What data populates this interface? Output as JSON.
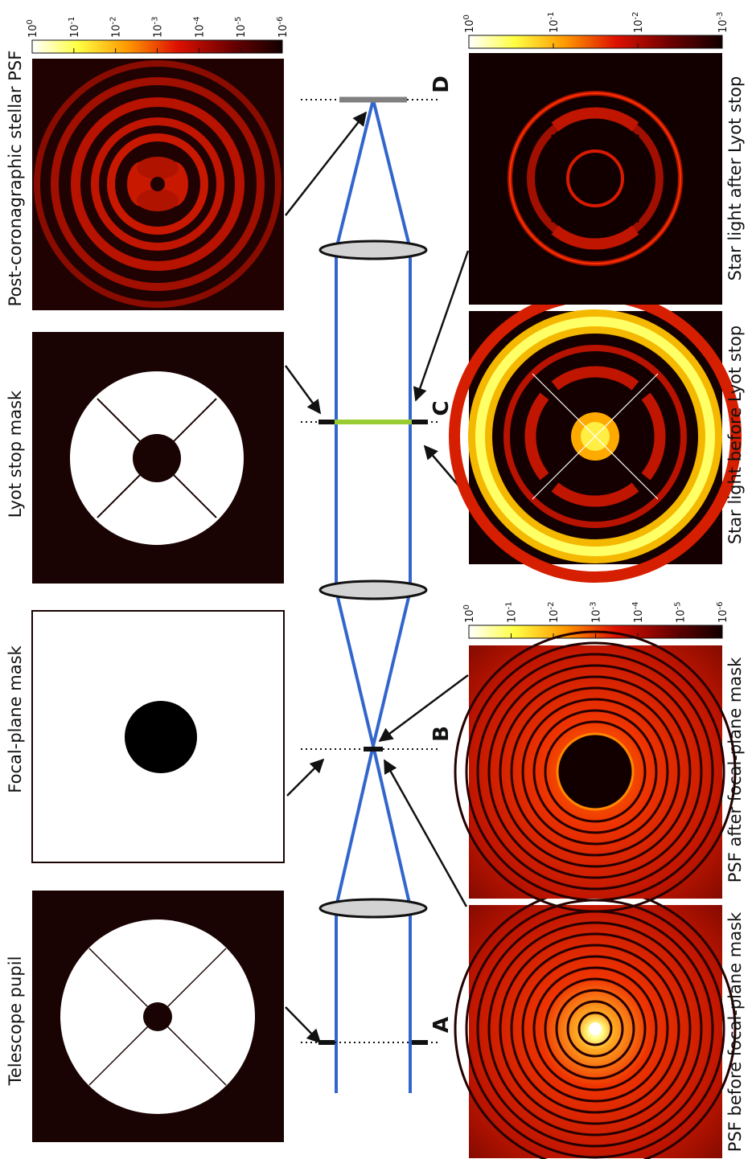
{
  "labels": {
    "telescope_pupil": "Telescope pupil",
    "focal_plane_mask": "Focal-plane mask",
    "lyot_stop_mask": "Lyot stop mask",
    "post_coronagraphic_psf": "Post-coronagraphic stellar PSF",
    "psf_before_fpm": "PSF before focal-plane mask",
    "psf_after_fpm": "PSF after focal-plane mask",
    "star_before_lyot": "Star light before Lyot stop",
    "star_after_lyot": "Star light after Lyot stop"
  },
  "planes": {
    "a": "A",
    "b": "B",
    "c": "C",
    "d": "D"
  },
  "colorbars": {
    "top": [
      "10^0",
      "10^-1",
      "10^-2",
      "10^-3",
      "10^-4",
      "10^-5",
      "10^-6"
    ],
    "bottom_left": [
      "10^0",
      "10^-1",
      "10^-2",
      "10^-3",
      "10^-4",
      "10^-5",
      "10^-6"
    ],
    "bottom_right": [
      "10^0",
      "10^-1",
      "10^-2",
      "10^-3"
    ]
  },
  "colors": {
    "beam": "#3366cc",
    "lyot_stop": "#99cc33",
    "detector": "#808080",
    "background": "#1a0303"
  }
}
